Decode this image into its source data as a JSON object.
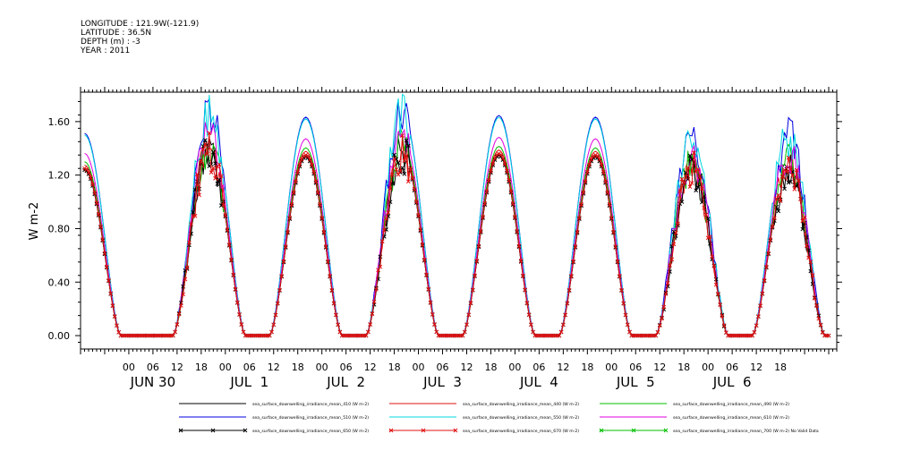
{
  "header": {
    "longitude": "LONGITUDE : 121.9W(-121.9)",
    "latitude": "LATITUDE : 36.5N",
    "depth": "DEPTH (m) : -3",
    "year": "YEAR : 2011"
  },
  "chart_data": {
    "type": "line",
    "title": "",
    "xlabel": "",
    "ylabel": "W m-2",
    "ylim": [
      -0.1,
      1.82
    ],
    "xlim": [
      -12,
      176
    ],
    "yticks": [
      "0.00",
      "0.40",
      "0.80",
      "1.20",
      "1.60"
    ],
    "ytick_values": [
      0,
      0.4,
      0.8,
      1.2,
      1.6
    ],
    "x_hour_labels": [
      "00",
      "06",
      "12",
      "18",
      "00",
      "06",
      "12",
      "18",
      "00",
      "06",
      "12",
      "18",
      "00",
      "06",
      "12",
      "18",
      "00",
      "06",
      "12",
      "18",
      "00",
      "06",
      "12",
      "18",
      "00",
      "06",
      "12",
      "18"
    ],
    "x_hour_values": [
      0,
      6,
      12,
      18,
      24,
      30,
      36,
      42,
      48,
      54,
      60,
      66,
      72,
      78,
      84,
      90,
      96,
      102,
      108,
      114,
      120,
      126,
      132,
      138,
      144,
      150,
      156,
      162
    ],
    "x_day_labels": [
      "JUN 30",
      "JUL  1",
      "JUL  2",
      "JUL  3",
      "JUL  4",
      "JUL  5",
      "JUL  6"
    ],
    "x_day_centers": [
      6,
      30,
      54,
      78,
      102,
      126,
      150
    ],
    "grid": false,
    "legend_position": "bottom",
    "time_step_hours": 0.5,
    "start_hour": -11,
    "end_hour": 174,
    "daily_peaks": [
      {
        "day": "JUN 30",
        "peak_hour": -11,
        "value_410": 1.25
      },
      {
        "day": "JUN 30",
        "peak_hour": 20,
        "value_410": 1.38
      },
      {
        "day": "JUL 1",
        "peak_hour": 44,
        "value_410": 1.35
      },
      {
        "day": "JUL 2",
        "peak_hour": 68,
        "value_410": 1.38
      },
      {
        "day": "JUL 3",
        "peak_hour": 92,
        "value_410": 1.36
      },
      {
        "day": "JUL 4",
        "peak_hour": 116,
        "value_410": 1.35
      },
      {
        "day": "JUL 5",
        "peak_hour": 140,
        "value_410": 1.25
      },
      {
        "day": "JUL 6",
        "peak_hour": 164,
        "value_410": 1.25
      }
    ],
    "series": [
      {
        "name": "sea_surface_downwelling_irradiance_mean_410 (W m-2)",
        "color": "#000000",
        "marker": "none",
        "scale": 1.0
      },
      {
        "name": "sea_surface_downwelling_irradiance_mean_440 (W m-2)",
        "color": "#e01010",
        "marker": "none",
        "scale": 1.02
      },
      {
        "name": "sea_surface_downwelling_irradiance_mean_490 (W m-2)",
        "color": "#00c000",
        "marker": "none",
        "scale": 1.04
      },
      {
        "name": "sea_surface_downwelling_irradiance_mean_510 (W m-2)",
        "color": "#0000e0",
        "marker": "none",
        "scale": 1.21
      },
      {
        "name": "sea_surface_downwelling_irradiance_mean_550 (W m-2)",
        "color": "#00d8e0",
        "marker": "none",
        "scale": 1.2
      },
      {
        "name": "sea_surface_downwelling_irradiance_mean_610 (W m-2)",
        "color": "#e000e0",
        "marker": "none",
        "scale": 1.09
      },
      {
        "name": "sea_surface_downwelling_irradiance_mean_650 (W m-2)",
        "color": "#000000",
        "marker": "x",
        "scale": 0.99
      },
      {
        "name": "sea_surface_downwelling_irradiance_mean_670 (W m-2)",
        "color": "#e01010",
        "marker": "x",
        "scale": 1.0
      },
      {
        "name": "sea_surface_downwelling_irradiance_mean_700 (W m-2) No Valid Data",
        "color": "#00c000",
        "marker": "x",
        "scale": 0
      }
    ]
  }
}
